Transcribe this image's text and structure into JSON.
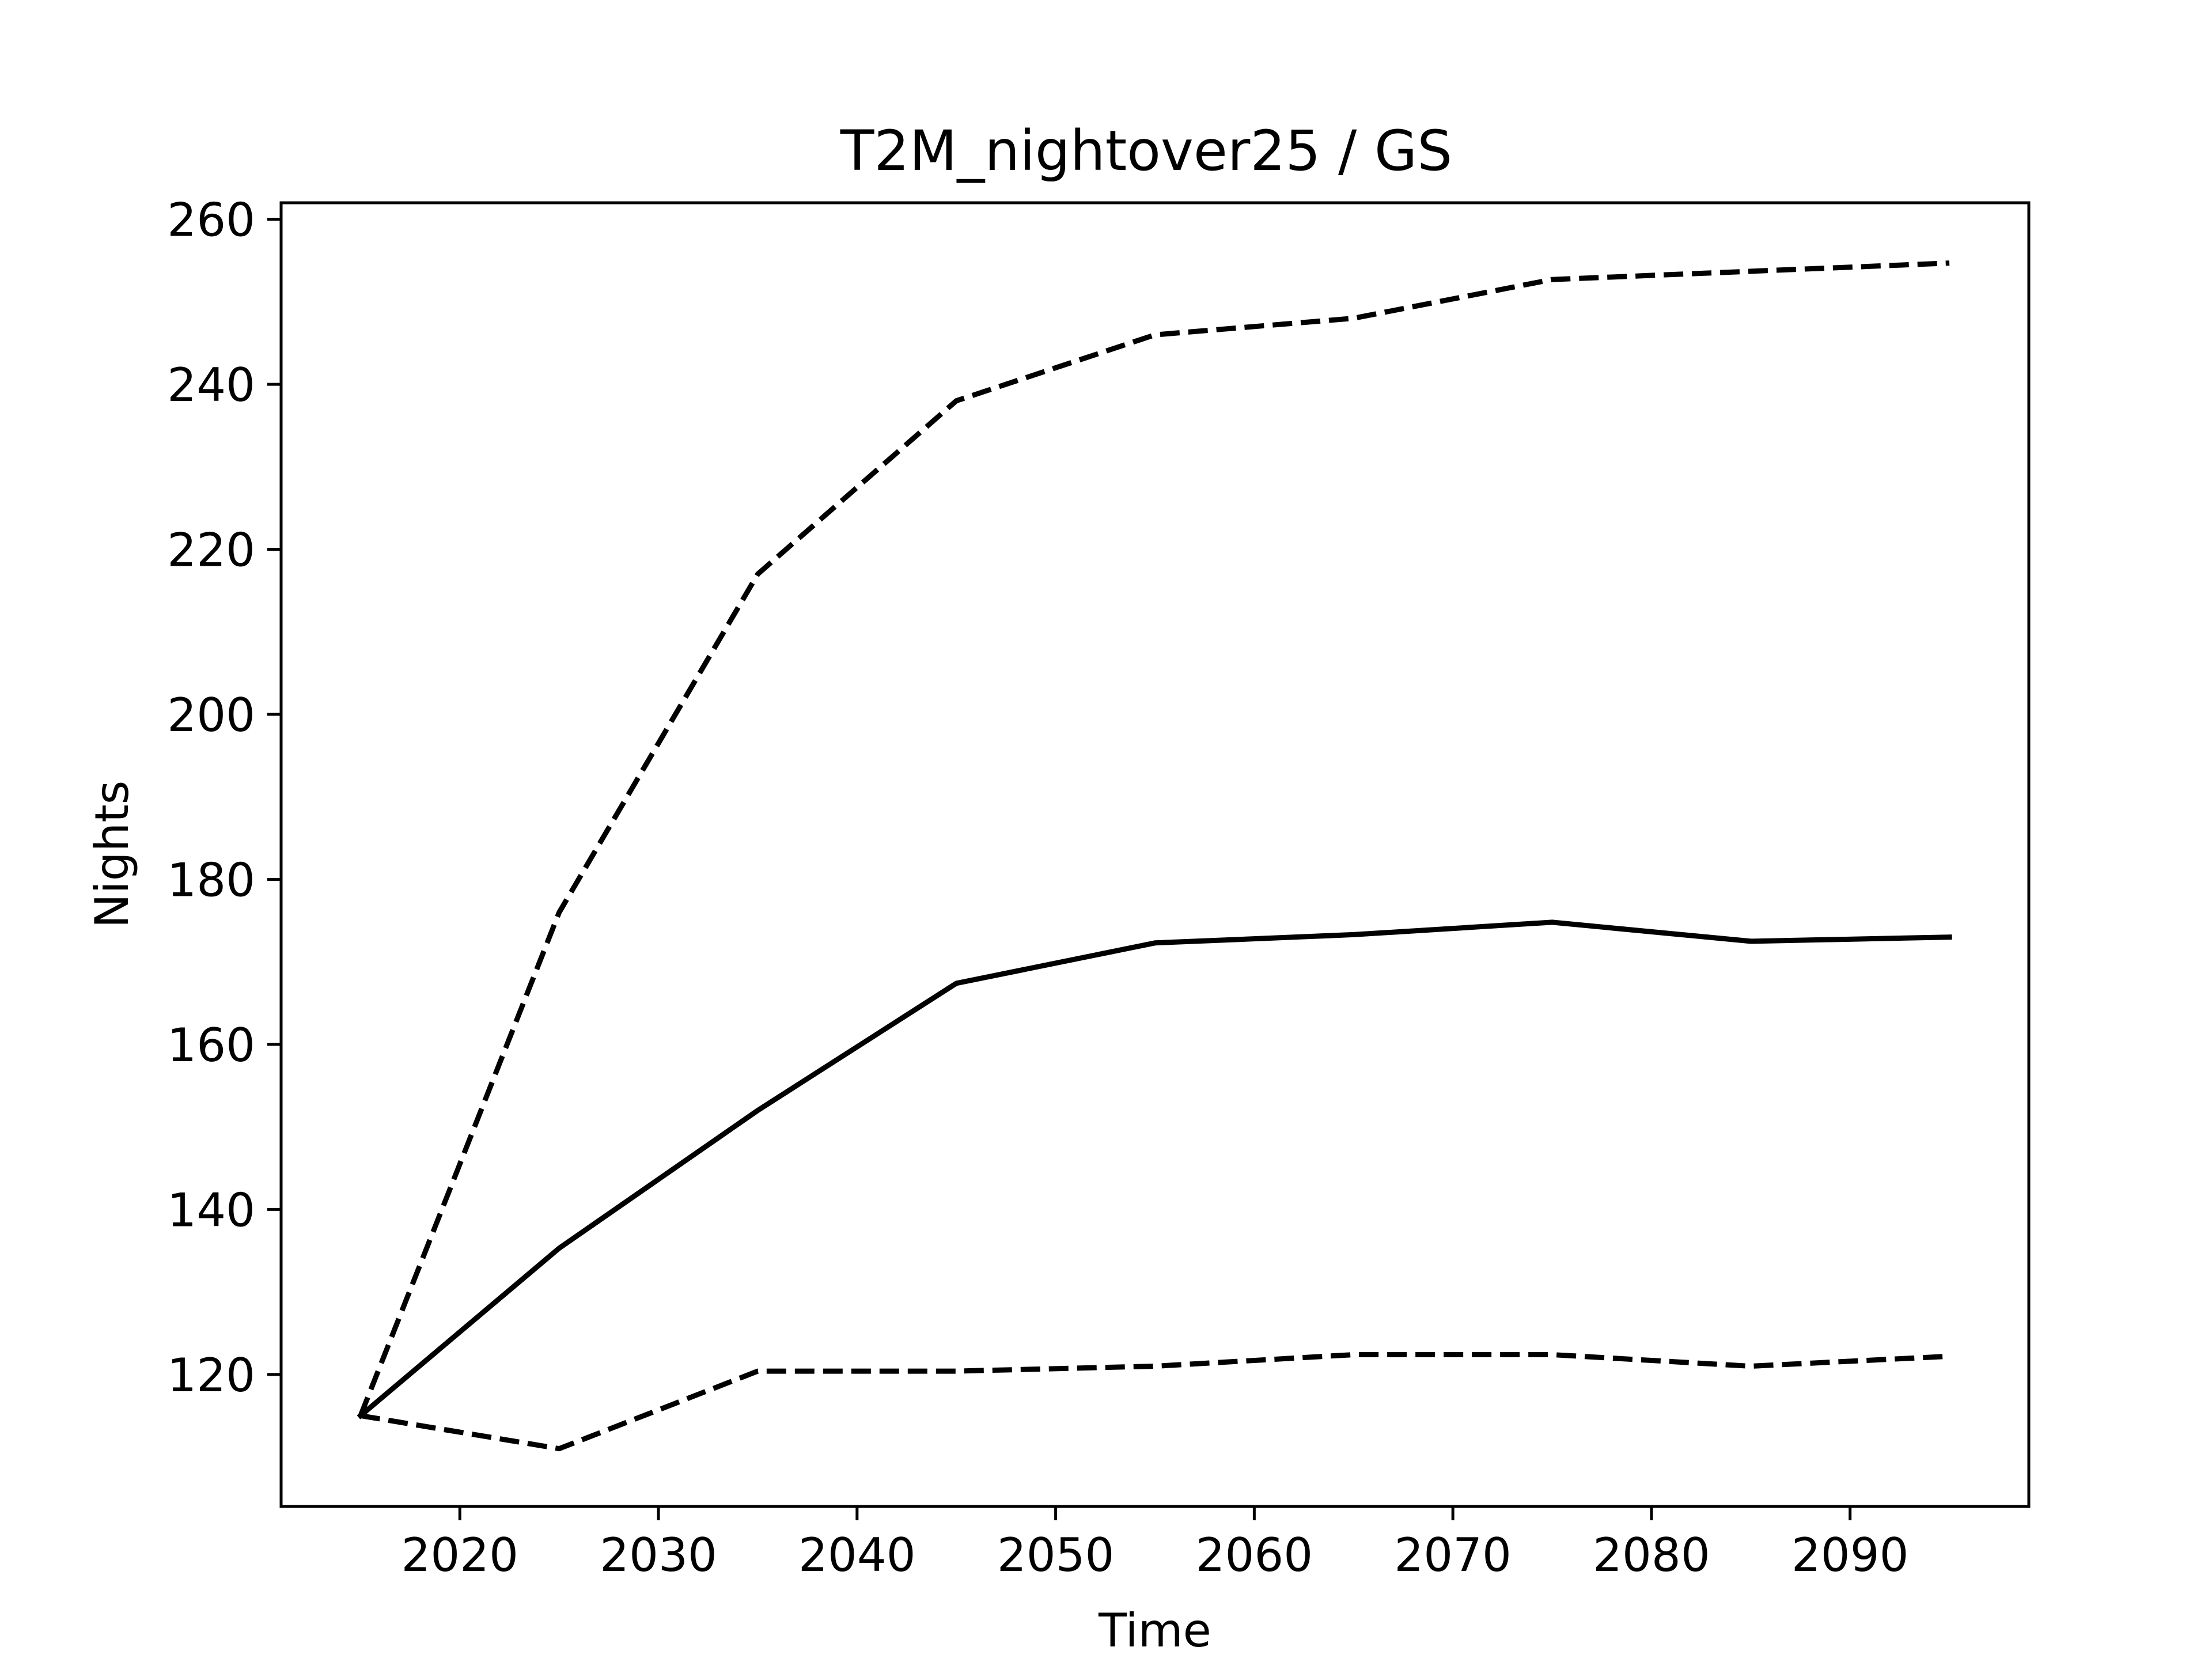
{
  "chart_data": {
    "type": "line",
    "title": "T2M_nightover25 / GS",
    "xlabel": "Time",
    "ylabel": "Nights",
    "xlim": [
      2011,
      2099
    ],
    "ylim": [
      104,
      262
    ],
    "xticks": [
      2020,
      2030,
      2040,
      2050,
      2060,
      2070,
      2080,
      2090
    ],
    "yticks": [
      120,
      140,
      160,
      180,
      200,
      220,
      240,
      260
    ],
    "grid": false,
    "x": [
      2015,
      2025,
      2035,
      2045,
      2055,
      2065,
      2075,
      2085,
      2095
    ],
    "series": [
      {
        "style": "dashed",
        "color": "#000000",
        "values": [
          115,
          176,
          217,
          238,
          246,
          248,
          252.7,
          253.7,
          254.7
        ]
      },
      {
        "style": "solid",
        "color": "#000000",
        "values": [
          115,
          135.3,
          152,
          167.4,
          172.3,
          173.3,
          174.8,
          172.5,
          173
        ]
      },
      {
        "style": "dashed",
        "color": "#000000",
        "values": [
          115,
          111,
          120.4,
          120.4,
          121,
          122.4,
          122.4,
          121,
          122.2
        ]
      }
    ]
  }
}
